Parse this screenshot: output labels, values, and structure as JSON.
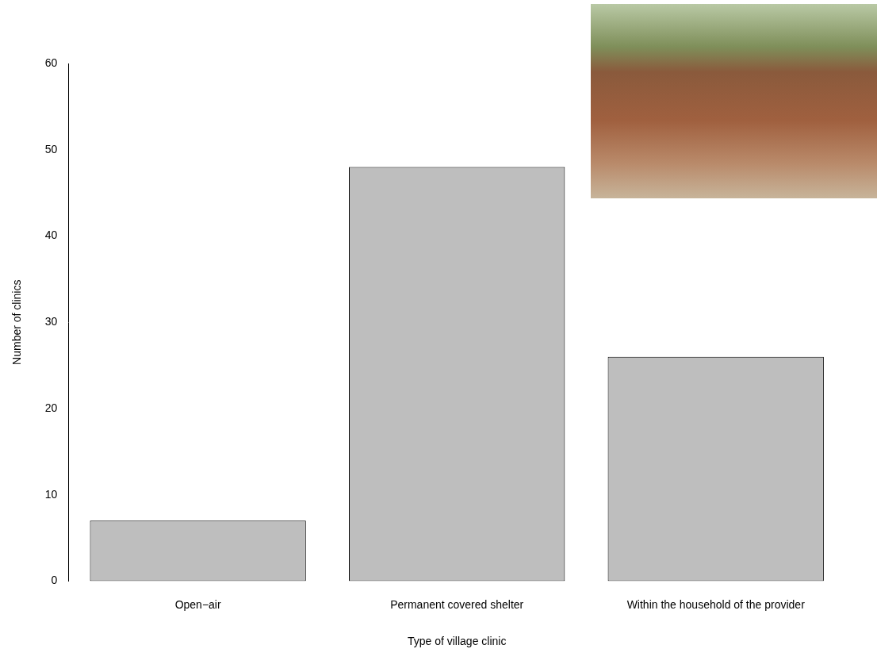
{
  "chart_data": {
    "type": "bar",
    "x_label": "Type of village clinic",
    "y_label": "Number of clinics",
    "categories": [
      "Open−air",
      "Permanent covered shelter",
      "Within the household of the provider"
    ],
    "values": [
      7,
      48,
      26
    ],
    "color": "#bebebe",
    "ylim": [
      0,
      60
    ],
    "yticks": [
      0,
      10,
      20,
      30,
      40,
      50,
      60
    ],
    "grid": false
  }
}
